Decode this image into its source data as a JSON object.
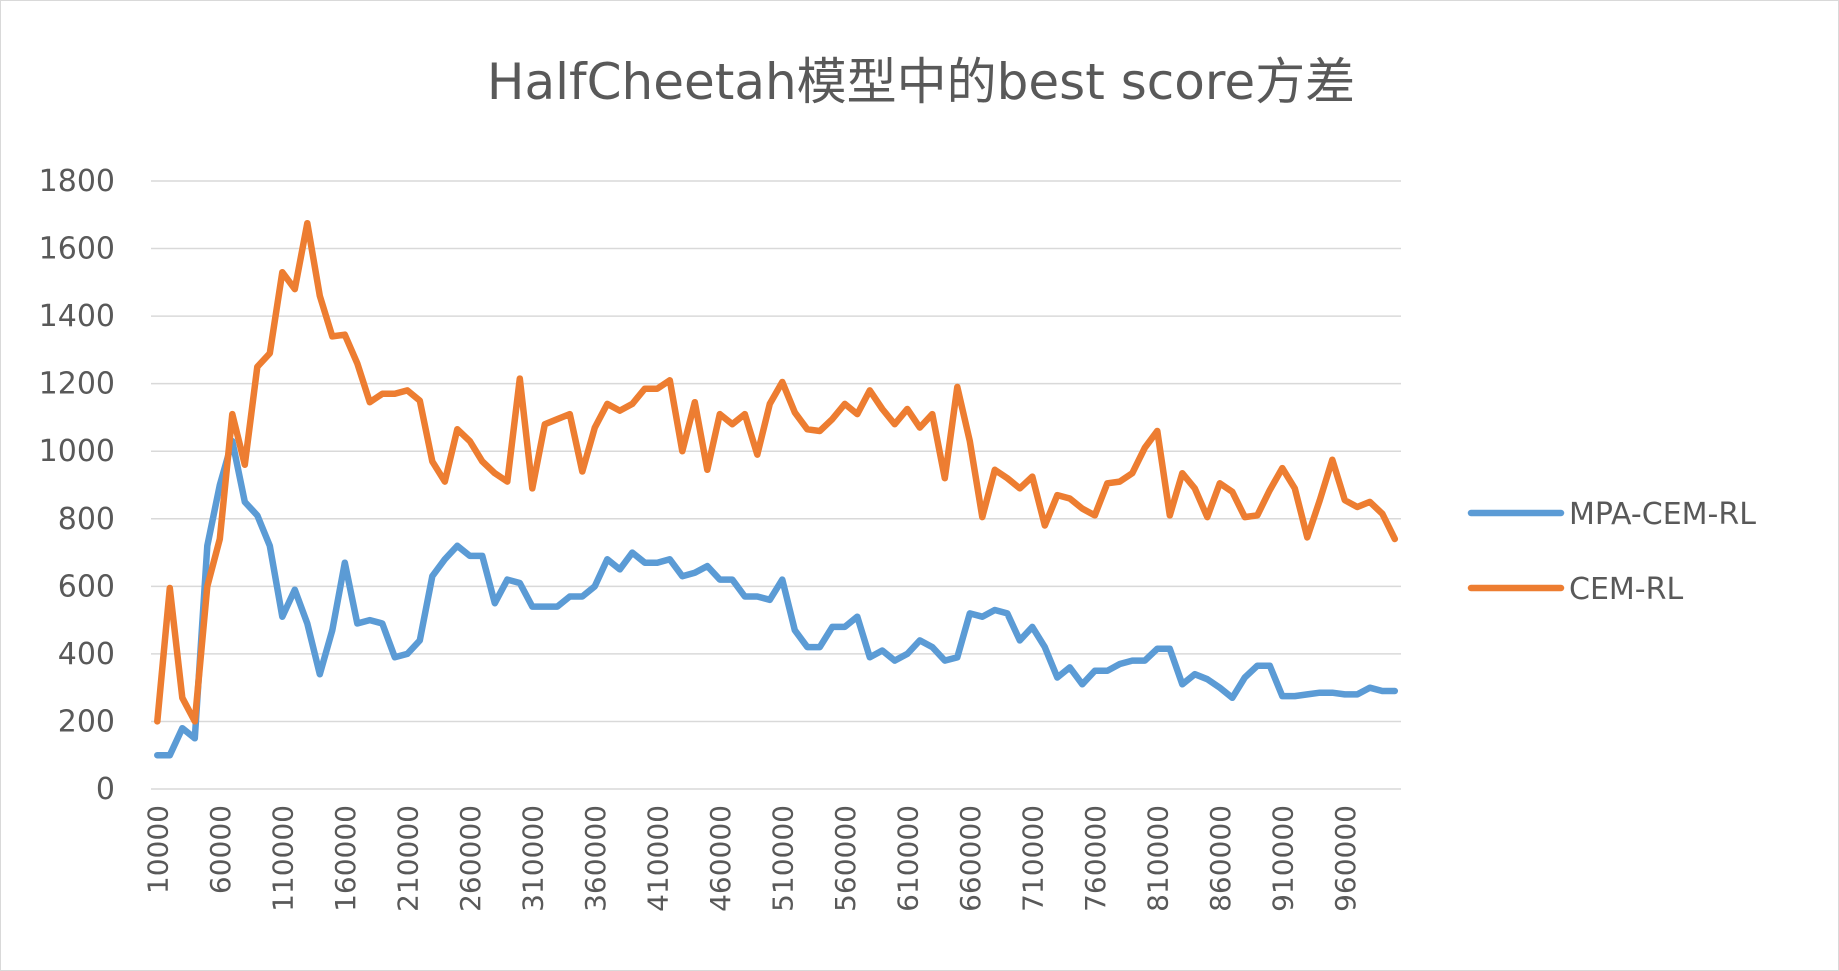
{
  "chart_data": {
    "type": "line",
    "title": "HalfCheetah模型中的best score方差",
    "xlabel": "",
    "ylabel": "",
    "ylim": [
      0,
      1800
    ],
    "y_ticks": [
      "0",
      "200",
      "400",
      "600",
      "800",
      "1000",
      "1200",
      "1400",
      "1600",
      "1800"
    ],
    "x_tick_labels": [
      "10000",
      "60000",
      "110000",
      "160000",
      "210000",
      "260000",
      "310000",
      "360000",
      "410000",
      "460000",
      "510000",
      "560000",
      "610000",
      "660000",
      "710000",
      "760000",
      "810000",
      "860000",
      "910000",
      "960000"
    ],
    "x": [
      10000,
      20000,
      30000,
      40000,
      50000,
      60000,
      70000,
      80000,
      90000,
      100000,
      110000,
      120000,
      130000,
      140000,
      150000,
      160000,
      170000,
      180000,
      190000,
      200000,
      210000,
      220000,
      230000,
      240000,
      250000,
      260000,
      270000,
      280000,
      290000,
      300000,
      310000,
      320000,
      330000,
      340000,
      350000,
      360000,
      370000,
      380000,
      390000,
      400000,
      410000,
      420000,
      430000,
      440000,
      450000,
      460000,
      470000,
      480000,
      490000,
      500000,
      510000,
      520000,
      530000,
      540000,
      550000,
      560000,
      570000,
      580000,
      590000,
      600000,
      610000,
      620000,
      630000,
      640000,
      650000,
      660000,
      670000,
      680000,
      690000,
      700000,
      710000,
      720000,
      730000,
      740000,
      750000,
      760000,
      770000,
      780000,
      790000,
      800000,
      810000,
      820000,
      830000,
      840000,
      850000,
      860000,
      870000,
      880000,
      890000,
      900000,
      910000,
      920000,
      930000,
      940000,
      950000,
      960000,
      970000,
      980000,
      990000,
      1000000
    ],
    "grid": true,
    "legend_position": "right",
    "series": [
      {
        "name": "MPA-CEM-RL",
        "color": "#5b9bd5",
        "values": [
          100,
          100,
          180,
          150,
          720,
          900,
          1030,
          850,
          810,
          720,
          510,
          590,
          490,
          340,
          470,
          670,
          490,
          500,
          490,
          390,
          400,
          440,
          630,
          680,
          720,
          690,
          690,
          550,
          620,
          610,
          540,
          540,
          540,
          570,
          570,
          600,
          680,
          650,
          700,
          670,
          670,
          680,
          630,
          640,
          660,
          620,
          620,
          570,
          570,
          560,
          620,
          470,
          420,
          420,
          480,
          480,
          510,
          390,
          410,
          380,
          400,
          440,
          420,
          380,
          390,
          520,
          510,
          530,
          520,
          440,
          480,
          420,
          330,
          360,
          310,
          350,
          350,
          370,
          380,
          380,
          415,
          415,
          310,
          340,
          325,
          300,
          270,
          330,
          365,
          365,
          275,
          275,
          280,
          285,
          285,
          280,
          280,
          300,
          290,
          290
        ]
      },
      {
        "name": "CEM-RL",
        "color": "#ed7d31",
        "values": [
          200,
          595,
          270,
          200,
          600,
          740,
          1110,
          960,
          1250,
          1290,
          1530,
          1480,
          1675,
          1460,
          1340,
          1345,
          1260,
          1145,
          1170,
          1170,
          1180,
          1150,
          970,
          910,
          1065,
          1030,
          970,
          935,
          910,
          1215,
          890,
          1080,
          1095,
          1110,
          940,
          1070,
          1140,
          1120,
          1140,
          1185,
          1185,
          1210,
          1000,
          1145,
          945,
          1110,
          1080,
          1110,
          990,
          1140,
          1205,
          1115,
          1065,
          1060,
          1095,
          1140,
          1110,
          1180,
          1125,
          1080,
          1125,
          1070,
          1110,
          920,
          1190,
          1030,
          805,
          945,
          920,
          890,
          925,
          780,
          870,
          860,
          830,
          810,
          905,
          910,
          935,
          1010,
          1060,
          810,
          935,
          890,
          805,
          905,
          880,
          805,
          810,
          885,
          950,
          890,
          745,
          855,
          975,
          855,
          835,
          850,
          815,
          740
        ]
      }
    ]
  }
}
